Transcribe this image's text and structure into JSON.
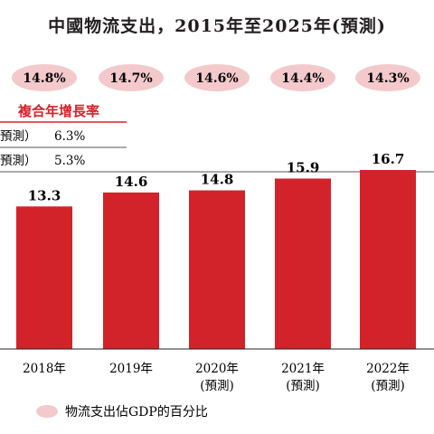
{
  "chart_data": {
    "type": "bar",
    "title": "中國物流支出，2015年至2025年(預測)",
    "categories": [
      {
        "year": "2018年",
        "note": ""
      },
      {
        "year": "2019年",
        "note": ""
      },
      {
        "year": "2020年",
        "note": "(預測)"
      },
      {
        "year": "2021年",
        "note": "(預測)"
      },
      {
        "year": "2022年",
        "note": "(預測)"
      }
    ],
    "values": [
      13.3,
      14.6,
      14.8,
      15.9,
      16.7
    ],
    "value_labels": [
      "13.3",
      "14.6",
      "14.8",
      "15.9",
      "16.7"
    ],
    "gdp_share_labels": [
      "14.8%",
      "14.7%",
      "14.6%",
      "14.4%",
      "14.3%"
    ],
    "cagr_table": {
      "title": "複合年增長率",
      "rows": [
        {
          "label": "預測）",
          "value": "6.3%"
        },
        {
          "label": "預測）",
          "value": "5.3%"
        }
      ]
    },
    "legend": {
      "label": "物流支出佔GDP的百分比"
    },
    "colors": {
      "bar": "#d2232a",
      "pill": "#f4c9cc",
      "accent": "#d2232a"
    },
    "ylim": [
      0,
      16.7
    ],
    "grid": false
  }
}
